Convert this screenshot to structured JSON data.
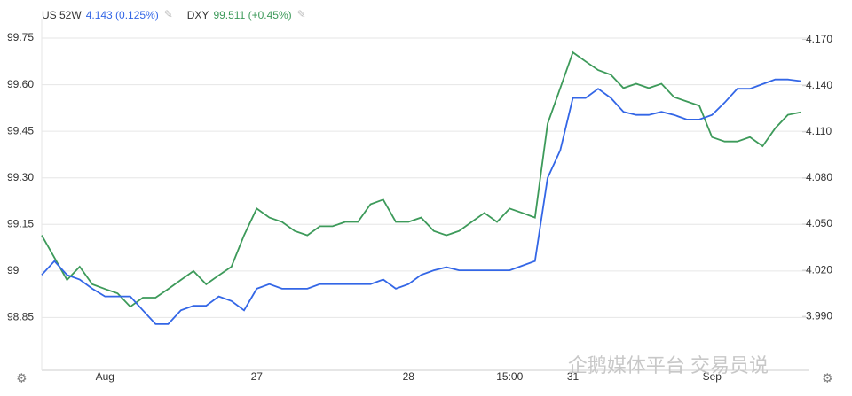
{
  "chart_data": {
    "type": "line",
    "legend": [
      {
        "name": "US 52W",
        "value_text": "4.143 (0.125%)"
      },
      {
        "name": "DXY",
        "value_text": "99.511 (+0.45%)"
      }
    ],
    "categories": [
      null,
      null,
      null,
      null,
      null,
      "Aug",
      null,
      null,
      null,
      null,
      null,
      null,
      null,
      null,
      null,
      null,
      null,
      "27",
      null,
      null,
      null,
      null,
      null,
      null,
      null,
      null,
      null,
      null,
      null,
      "28",
      null,
      null,
      null,
      null,
      null,
      null,
      null,
      "15:00",
      null,
      null,
      null,
      null,
      "31",
      null,
      null,
      null,
      null,
      null,
      null,
      null,
      null,
      null,
      null,
      "Sep",
      null,
      null,
      null,
      null,
      null,
      null,
      null
    ],
    "series": [
      {
        "name": "DXY",
        "color": "#3d9a5a",
        "axis": "y",
        "values": [
          99.115,
          99.043,
          98.971,
          99.014,
          98.957,
          98.942,
          98.928,
          98.885,
          98.914,
          98.914,
          98.942,
          98.971,
          99.0,
          98.957,
          98.986,
          99.014,
          99.115,
          99.201,
          99.172,
          99.158,
          99.129,
          99.115,
          99.144,
          99.144,
          99.158,
          99.158,
          99.215,
          99.23,
          99.158,
          99.158,
          99.172,
          99.129,
          99.115,
          99.129,
          99.158,
          99.187,
          99.158,
          99.201,
          99.187,
          99.172,
          99.474,
          99.589,
          99.704,
          99.675,
          99.647,
          99.632,
          99.589,
          99.603,
          99.589,
          99.603,
          99.56,
          99.546,
          99.532,
          99.431,
          99.417,
          99.417,
          99.431,
          99.402,
          99.46,
          99.503,
          99.511
        ]
      },
      {
        "name": "US 52W",
        "color": "#3366e6",
        "axis": "y2",
        "values": [
          4.017,
          4.026,
          4.017,
          4.014,
          4.008,
          4.003,
          4.003,
          4.003,
          3.994,
          3.985,
          3.985,
          3.994,
          3.997,
          3.997,
          4.003,
          4.0,
          3.994,
          4.008,
          4.011,
          4.008,
          4.008,
          4.008,
          4.011,
          4.011,
          4.011,
          4.011,
          4.011,
          4.014,
          4.008,
          4.011,
          4.017,
          4.02,
          4.022,
          4.02,
          4.02,
          4.02,
          4.02,
          4.02,
          4.023,
          4.026,
          4.08,
          4.098,
          4.132,
          4.132,
          4.138,
          4.132,
          4.123,
          4.121,
          4.121,
          4.123,
          4.121,
          4.118,
          4.118,
          4.121,
          4.129,
          4.138,
          4.138,
          4.141,
          4.144,
          4.144,
          4.143
        ]
      }
    ],
    "ylim": [
      98.68,
      99.81
    ],
    "yticks": [
      99.75,
      {
        "value": 99.6,
        "label": "99.60"
      },
      99.45,
      {
        "value": 99.3,
        "label": "99.30"
      },
      99.15,
      99,
      98.85
    ],
    "y2lim": [
      3.955,
      4.183
    ],
    "y2ticks": [
      {
        "value": 4.17,
        "label": "4.170"
      },
      {
        "value": 4.14,
        "label": "4.140"
      },
      {
        "value": 4.11,
        "label": "4.110"
      },
      {
        "value": 4.08,
        "label": "4.080"
      },
      {
        "value": 4.05,
        "label": "4.050"
      },
      {
        "value": 4.02,
        "label": "4.020"
      },
      {
        "value": 3.99,
        "label": "3.990"
      }
    ],
    "grid": true,
    "watermark": "企鹅媒体平台 交易员说"
  }
}
